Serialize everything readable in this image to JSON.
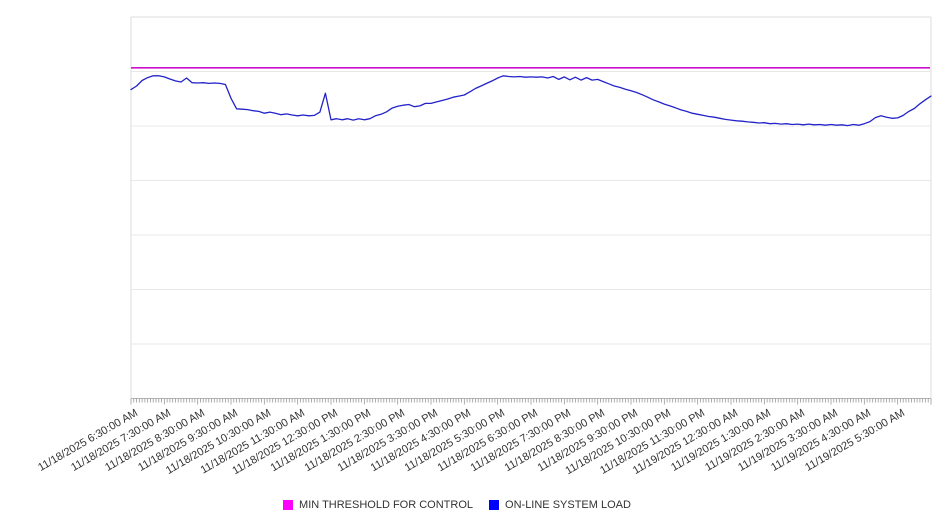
{
  "chart_data": {
    "type": "line",
    "title": "",
    "grid": "horizontal",
    "legend_position": "bottom-center",
    "x_axis": {
      "start": "11/18/2025 6:30:00 AM",
      "end": "11/19/2025 6:30:00 AM",
      "minor_tick_interval_minutes": 5,
      "label_rotation_deg": -30,
      "tick_labels": [
        "11/18/2025 6:30:00 AM",
        "11/18/2025 7:30:00 AM",
        "11/18/2025 8:30:00 AM",
        "11/18/2025 9:30:00 AM",
        "11/18/2025 10:30:00 AM",
        "11/18/2025 11:30:00 AM",
        "11/18/2025 12:30:00 PM",
        "11/18/2025 1:30:00 PM",
        "11/18/2025 2:30:00 PM",
        "11/18/2025 3:30:00 PM",
        "11/18/2025 4:30:00 PM",
        "11/18/2025 5:30:00 PM",
        "11/18/2025 6:30:00 PM",
        "11/18/2025 7:30:00 PM",
        "11/18/2025 8:30:00 PM",
        "11/18/2025 9:30:00 PM",
        "11/18/2025 10:30:00 PM",
        "11/18/2025 11:30:00 PM",
        "11/19/2025 12:30:00 AM",
        "11/19/2025 1:30:00 AM",
        "11/19/2025 2:30:00 AM",
        "11/19/2025 3:30:00 AM",
        "11/19/2025 4:30:00 AM",
        "11/19/2025 5:30:00 AM"
      ]
    },
    "y_axis": {
      "ylim": [
        0,
        105
      ],
      "gridline_step": 15,
      "tick_labels_visible": false
    },
    "series": [
      {
        "name": "MIN THRESHOLD FOR CONTROL",
        "type": "threshold",
        "color": "#ff00ff",
        "line_color": "#cc11cc",
        "value": 91
      },
      {
        "name": "ON-LINE SYSTEM LOAD",
        "type": "line",
        "color": "#0000ff",
        "line_color": "#2323c9",
        "interval_minutes": 10,
        "values": [
          85.0,
          86.0,
          87.5,
          88.3,
          88.8,
          88.8,
          88.5,
          87.9,
          87.4,
          87.1,
          88.2,
          86.9,
          86.8,
          86.9,
          86.7,
          86.8,
          86.7,
          86.4,
          82.6,
          79.7,
          79.6,
          79.5,
          79.2,
          79.0,
          78.5,
          78.8,
          78.5,
          78.1,
          78.3,
          78.0,
          77.8,
          78.0,
          77.8,
          77.9,
          78.8,
          84.0,
          76.7,
          77.0,
          76.7,
          77.0,
          76.6,
          77.0,
          76.7,
          77.0,
          77.8,
          78.2,
          78.9,
          79.9,
          80.4,
          80.7,
          80.9,
          80.3,
          80.5,
          81.2,
          81.2,
          81.6,
          82.0,
          82.4,
          82.9,
          83.2,
          83.5,
          84.4,
          85.3,
          86.0,
          86.7,
          87.4,
          88.2,
          88.8,
          88.6,
          88.5,
          88.6,
          88.4,
          88.5,
          88.4,
          88.5,
          88.2,
          88.6,
          87.8,
          88.5,
          87.7,
          88.4,
          87.6,
          88.3,
          87.6,
          87.8,
          87.2,
          86.6,
          86.0,
          85.6,
          85.1,
          84.7,
          84.2,
          83.6,
          82.9,
          82.2,
          81.6,
          81.0,
          80.5,
          80.0,
          79.4,
          79.0,
          78.5,
          78.2,
          77.9,
          77.6,
          77.4,
          77.1,
          76.8,
          76.6,
          76.4,
          76.3,
          76.1,
          76.0,
          75.8,
          75.9,
          75.6,
          75.7,
          75.5,
          75.6,
          75.4,
          75.5,
          75.3,
          75.5,
          75.3,
          75.4,
          75.2,
          75.4,
          75.2,
          75.3,
          75.1,
          75.4,
          75.2,
          75.6,
          76.2,
          77.3,
          77.8,
          77.4,
          77.1,
          77.2,
          77.9,
          79.0,
          79.8,
          81.1,
          82.2,
          83.2
        ]
      }
    ]
  }
}
